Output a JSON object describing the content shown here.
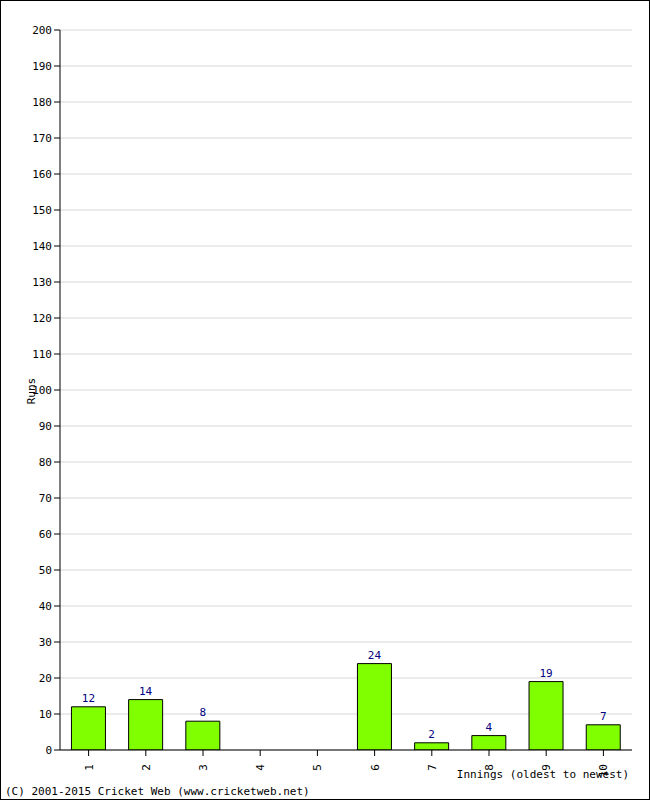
{
  "chart_data": {
    "type": "bar",
    "ylabel": "Runs",
    "xlabel": "Innings (oldest to newest)",
    "annotations": [
      "(C) 2001-2015 Cricket Web (www.cricketweb.net)"
    ],
    "categories": [
      "1",
      "2",
      "3",
      "4",
      "5",
      "6",
      "7",
      "8",
      "9",
      "10"
    ],
    "values": [
      12,
      14,
      8,
      0,
      0,
      24,
      2,
      4,
      19,
      7
    ],
    "color": "#80ff00",
    "ylim": [
      0,
      200
    ],
    "yticks": [
      0,
      10,
      20,
      30,
      40,
      50,
      60,
      70,
      80,
      90,
      100,
      110,
      120,
      130,
      140,
      150,
      160,
      170,
      180,
      190,
      200
    ],
    "grid": true,
    "data_labels": true
  }
}
